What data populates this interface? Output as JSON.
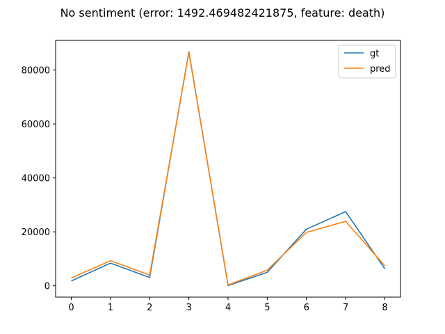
{
  "chart_data": {
    "type": "line",
    "title": "No sentiment (error: 1492.469482421875, feature: death)",
    "xlabel": "",
    "ylabel": "",
    "x": [
      0,
      1,
      2,
      3,
      4,
      5,
      6,
      7,
      8
    ],
    "xlim": [
      -0.4,
      8.4
    ],
    "ylim": [
      -4200,
      91000
    ],
    "xticks": [
      0,
      1,
      2,
      3,
      4,
      5,
      6,
      7,
      8
    ],
    "yticks": [
      0,
      20000,
      40000,
      60000,
      80000
    ],
    "grid": false,
    "legend_position": "top-right",
    "series": [
      {
        "name": "gt",
        "color": "#1f77b4",
        "values": [
          1800,
          8400,
          3100,
          86800,
          100,
          5000,
          21000,
          27500,
          6300
        ]
      },
      {
        "name": "pred",
        "color": "#ff7f0e",
        "values": [
          2900,
          9300,
          4000,
          86500,
          300,
          5800,
          19800,
          23900,
          7400
        ]
      }
    ]
  }
}
